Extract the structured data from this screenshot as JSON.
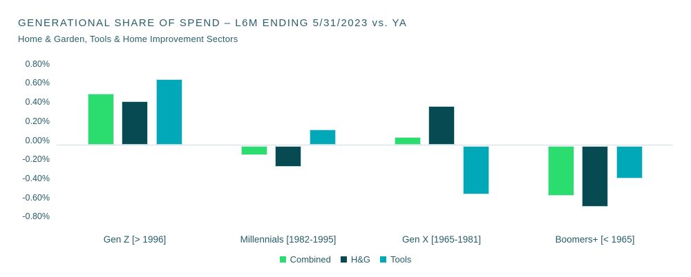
{
  "title": "GENERATIONAL SHARE OF SPEND – L6M ENDING 5/31/2023 vs. YA",
  "subtitle": "Home & Garden, Tools & Home Improvement Sectors",
  "colors": {
    "combined": "#2BDD6E",
    "hg": "#074A52",
    "tools": "#00A8B8",
    "text": "#255C68",
    "title_text": "#2A5E6A",
    "axis_line": "#CFE0E8",
    "background": "#FFFFFF"
  },
  "chart_data": {
    "type": "bar",
    "title": "GENERATIONAL SHARE OF SPEND – L6M ENDING 5/31/2023 vs. YA",
    "subtitle": "Home & Garden, Tools & Home Improvement Sectors",
    "categories": [
      "Gen Z [> 1996]",
      "Millennials [1982-1995]",
      "Gen X [1965-1981]",
      "Boomers+ [< 1965]"
    ],
    "series": [
      {
        "name": "Combined",
        "color": "#2BDD6E",
        "values": [
          0.54,
          -0.1,
          0.08,
          -0.52
        ]
      },
      {
        "name": "H&G",
        "color": "#074A52",
        "values": [
          0.46,
          -0.22,
          0.41,
          -0.64
        ]
      },
      {
        "name": "Tools",
        "color": "#00A8B8",
        "values": [
          0.69,
          0.16,
          -0.51,
          -0.34
        ]
      }
    ],
    "value_unit": "%",
    "y_axis": {
      "min": -0.8,
      "max": 0.8,
      "step": 0.2,
      "tick_format": "two-decimal-percent"
    },
    "grid": false,
    "baseline_at_zero": true,
    "legend_position": "bottom-center"
  }
}
